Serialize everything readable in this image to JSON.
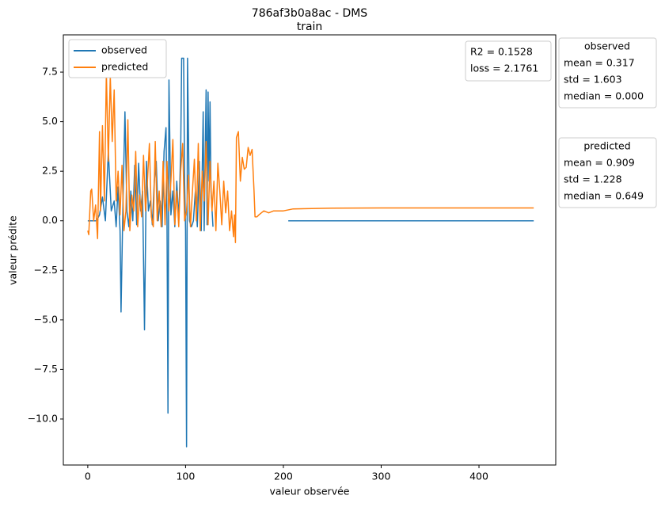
{
  "chart_data": {
    "type": "line",
    "title": "786af3b0a8ac - DMS",
    "subtitle": "train",
    "x_label": "valeur observée",
    "y_label": "valeur prédite",
    "legend": "upper left",
    "xlim": [
      -25,
      478.5
    ],
    "ylim": [
      -12.32,
      9.38
    ],
    "xticks": [
      0,
      100,
      200,
      300,
      400
    ],
    "yticks": [
      {
        "value": -10,
        "label": "−10.0"
      },
      {
        "value": -7.5,
        "label": "−7.5"
      },
      {
        "value": -5,
        "label": "−5.0"
      },
      {
        "value": -2.5,
        "label": "−2.5"
      },
      {
        "value": 0,
        "label": "0.0"
      },
      2.5,
      {
        "value": 5,
        "label": "5.0"
      },
      7.5
    ],
    "series": [
      {
        "name": "observed",
        "color": "#1f77b4",
        "x": [
          0,
          3,
          6,
          9,
          12,
          15,
          18,
          21,
          24,
          27,
          29,
          31,
          33,
          34,
          36,
          38,
          40,
          42,
          44,
          46,
          48,
          50,
          52,
          54,
          56,
          58,
          60,
          62,
          64,
          66,
          68,
          70,
          72,
          74,
          76,
          78,
          80,
          81,
          82,
          83,
          85,
          87,
          89,
          91,
          93,
          95,
          96,
          98,
          99,
          100,
          101,
          102,
          104,
          106,
          108,
          110,
          112,
          114,
          116,
          118,
          119,
          121,
          122,
          123,
          124,
          125,
          126,
          128,
          166,
          205,
          456
        ],
        "values": [
          0,
          0,
          0,
          0,
          0.3,
          1.2,
          0,
          3.5,
          0.5,
          1.0,
          -0.3,
          1.7,
          -0.5,
          -4.6,
          1.0,
          5.5,
          0.5,
          -0.3,
          1.5,
          0,
          2.8,
          -0.2,
          2.9,
          0.5,
          1.5,
          -5.5,
          3.0,
          0.5,
          1.0,
          -0.2,
          2.0,
          3.0,
          0,
          1.0,
          -0.3,
          3.5,
          4.7,
          0,
          -9.7,
          7.1,
          0.3,
          1.5,
          -0.3,
          2.0,
          0,
          3.5,
          8.2,
          8.2,
          2,
          -0.5,
          -11.4,
          8.2,
          0,
          -0.3,
          0,
          1.5,
          -0.3,
          3.0,
          -0.5,
          5.5,
          -0.5,
          6.6,
          -0.2,
          6.5,
          2,
          6.0,
          1.5,
          -0.3,
          null,
          0,
          0
        ]
      },
      {
        "name": "predicted",
        "color": "#ff7f0e",
        "x": [
          0,
          1,
          3,
          4,
          6,
          8,
          10,
          12,
          13,
          15,
          17,
          19,
          21,
          23,
          25,
          27,
          29,
          31,
          33,
          35,
          37,
          39,
          41,
          43,
          45,
          47,
          49,
          51,
          53,
          55,
          57,
          59,
          61,
          63,
          65,
          67,
          69,
          71,
          73,
          75,
          77,
          79,
          81,
          83,
          85,
          87,
          89,
          91,
          93,
          95,
          97,
          99,
          101,
          103,
          105,
          107,
          109,
          111,
          113,
          115,
          117,
          119,
          121,
          123,
          125,
          127,
          129,
          131,
          133,
          135,
          137,
          139,
          141,
          143,
          145,
          147,
          149,
          150,
          151,
          152,
          154,
          156,
          158,
          160,
          162,
          164,
          166,
          168,
          170,
          171,
          173,
          175,
          180,
          185,
          190,
          200,
          210,
          250,
          300,
          456
        ],
        "values": [
          -0.5,
          -0.7,
          1.5,
          1.6,
          0,
          0.8,
          -0.9,
          4.5,
          0.5,
          4.8,
          1.0,
          7.5,
          3,
          7.3,
          4,
          6.6,
          1,
          2.5,
          0.3,
          2.8,
          -0.5,
          0.5,
          5.1,
          -0.5,
          1.3,
          0.5,
          3.5,
          -0.3,
          1.3,
          0.2,
          3.3,
          0.5,
          2,
          3.9,
          0.2,
          -0.3,
          4,
          0,
          1.5,
          -0.3,
          3,
          -0.2,
          3,
          0.5,
          2,
          4.1,
          -0.2,
          1.5,
          -0.3,
          2.5,
          3.9,
          0,
          0.5,
          2.3,
          -0.3,
          1.5,
          3.1,
          0,
          3.9,
          -0.5,
          2.5,
          1,
          4,
          -0.2,
          3,
          0.5,
          2,
          -0.5,
          2.9,
          1.5,
          -0.2,
          2.0,
          0.4,
          1.5,
          -0.5,
          0.5,
          -0.8,
          0.3,
          -1.1,
          4.2,
          4.5,
          2,
          3.2,
          2.6,
          2.7,
          3.7,
          3.3,
          3.6,
          1.5,
          0.2,
          0.2,
          0.3,
          0.5,
          0.4,
          0.5,
          0.5,
          0.6,
          0.64,
          0.65,
          0.65
        ]
      }
    ],
    "annotation_lines": [
      "R2 = 0.1528",
      "loss = 2.1761"
    ],
    "stat_boxes": [
      {
        "title": "observed",
        "lines": [
          "mean = 0.317",
          "std = 1.603",
          "median = 0.000"
        ]
      },
      {
        "title": "predicted",
        "lines": [
          "mean = 0.909",
          "std = 1.228",
          "median = 0.649"
        ]
      }
    ]
  }
}
